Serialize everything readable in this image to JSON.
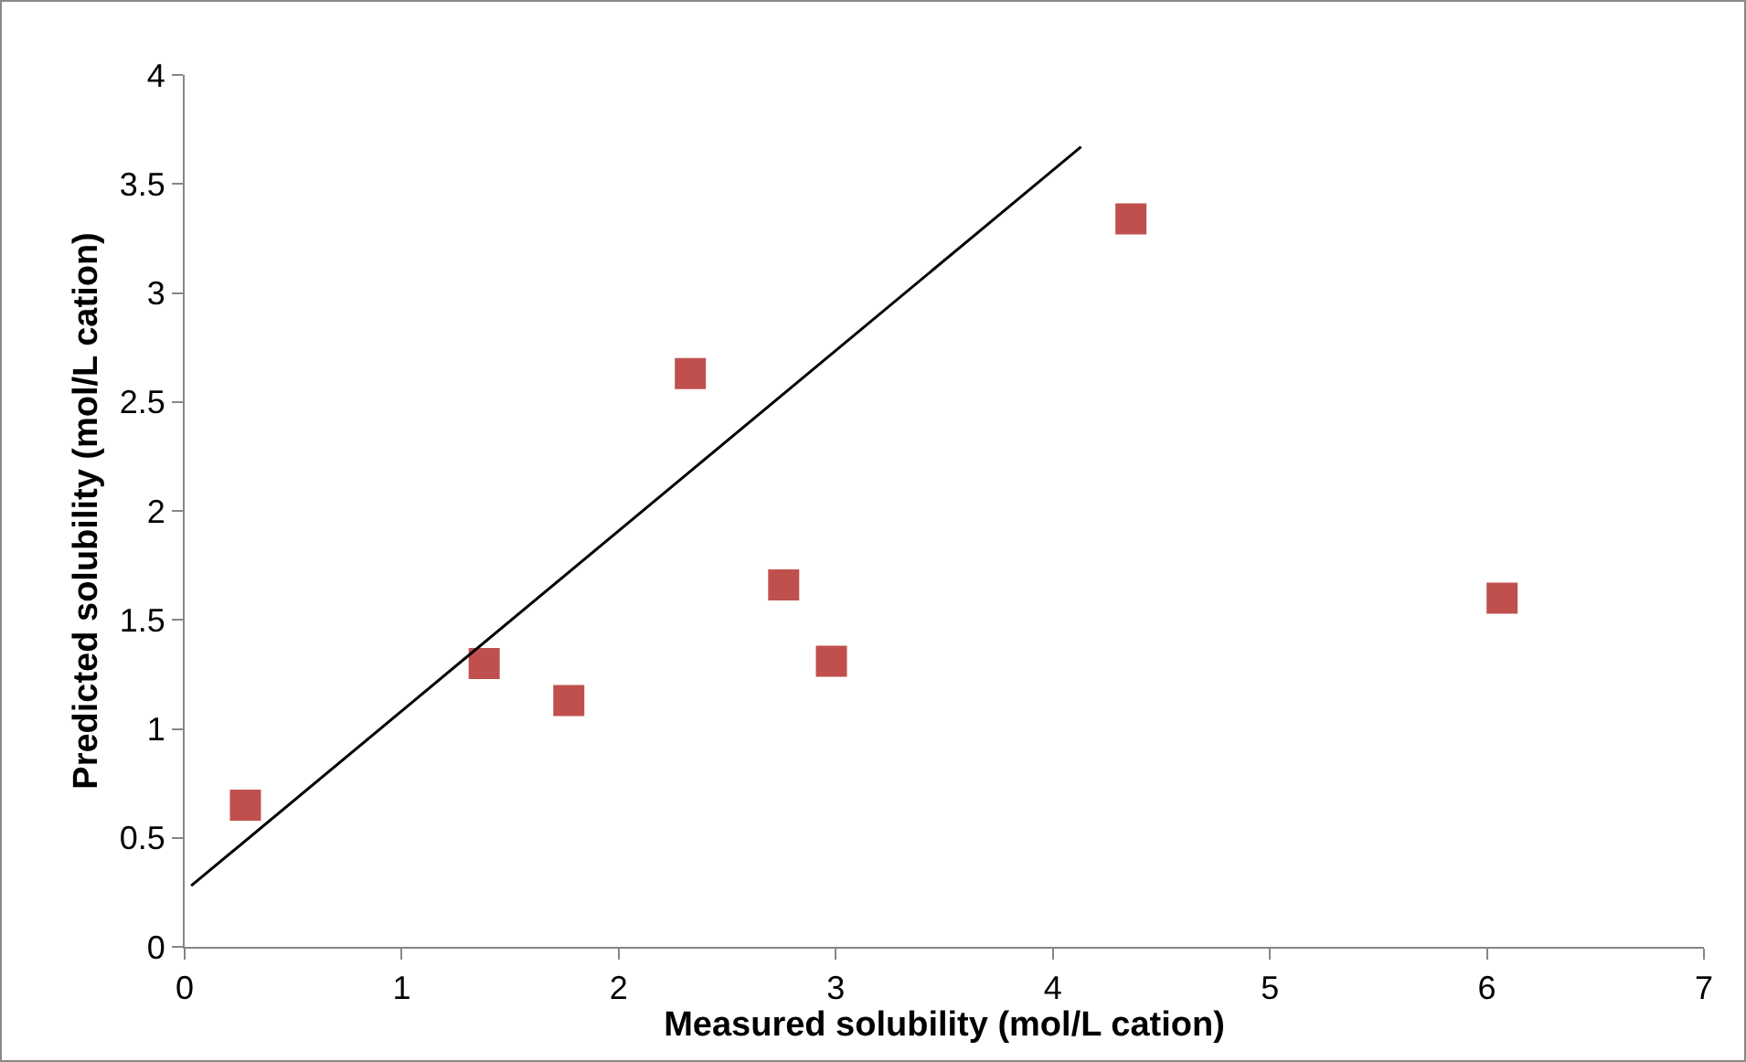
{
  "chart_data": {
    "type": "scatter",
    "xlabel": "Measured solubility (mol/L cation)",
    "ylabel": "Predicted solubility (mol/L cation)",
    "xlim": [
      0,
      7
    ],
    "xticks": [
      0,
      1,
      2,
      3,
      4,
      5,
      6,
      7
    ],
    "ylim": [
      0,
      4
    ],
    "yticks": [
      0,
      0.5,
      1,
      1.5,
      2,
      2.5,
      3,
      3.5,
      4
    ],
    "grid": false,
    "marker": "square",
    "series": [
      {
        "color": "#c0504d",
        "x": [
          0.28,
          1.38,
          1.77,
          2.33,
          2.76,
          2.98,
          4.36,
          6.07
        ],
        "values": [
          0.65,
          1.3,
          1.13,
          2.63,
          1.66,
          1.31,
          3.34,
          1.6
        ]
      },
      {
        "type": "line",
        "color": "#000000",
        "x": [
          0.03,
          4.13
        ],
        "values": [
          0.28,
          3.67
        ],
        "marker": "none",
        "line_style": "solid"
      }
    ]
  }
}
